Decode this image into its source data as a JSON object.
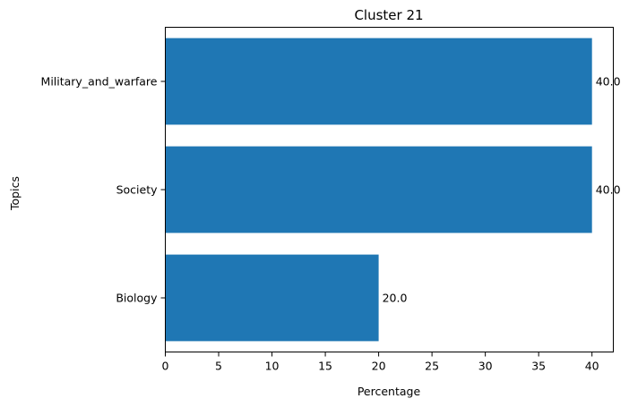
{
  "chart_data": {
    "type": "bar",
    "orientation": "horizontal",
    "title": "Cluster 21",
    "xlabel": "Percentage",
    "ylabel": "Topics",
    "categories": [
      "Biology",
      "Society",
      "Military_and_warfare"
    ],
    "values": [
      20.0,
      40.0,
      40.0
    ],
    "data_labels": [
      "20.0",
      "40.0",
      "40.0"
    ],
    "xlim": [
      0,
      42
    ],
    "xticks": [
      0,
      5,
      10,
      15,
      20,
      25,
      30,
      35,
      40
    ],
    "grid": false,
    "bar_color": "#1f77b4"
  }
}
